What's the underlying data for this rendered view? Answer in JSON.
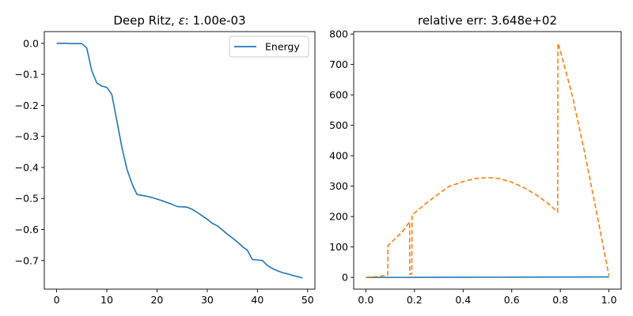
{
  "chart_data": [
    {
      "type": "line",
      "title_text": "Deep Ritz, ",
      "title_symbol": "ε",
      "title_suffix": ": 1.00e-03",
      "xlabel": "",
      "ylabel": "",
      "xlim": [
        -2.45,
        51.45
      ],
      "ylim": [
        -0.7922,
        0.0377
      ],
      "xticks": [
        0,
        10,
        20,
        30,
        40,
        50
      ],
      "yticks": [
        0.0,
        -0.1,
        -0.2,
        -0.3,
        -0.4,
        -0.5,
        -0.6,
        -0.7
      ],
      "ytick_labels": [
        "0.0",
        "−0.1",
        "−0.2",
        "−0.3",
        "−0.4",
        "−0.5",
        "−0.6",
        "−0.7"
      ],
      "grid": false,
      "legend_position": "top-right",
      "series": [
        {
          "name": "Energy",
          "color": "#1f77b4",
          "style": "solid",
          "x": [
            0,
            1,
            2,
            3,
            4,
            5,
            6,
            7,
            8,
            9,
            10,
            11,
            12,
            13,
            14,
            15,
            16,
            17,
            18,
            19,
            20,
            21,
            22,
            23,
            24,
            25,
            26,
            27,
            28,
            29,
            30,
            31,
            32,
            33,
            34,
            35,
            36,
            37,
            38,
            39,
            40,
            41,
            42,
            43,
            44,
            45,
            46,
            47,
            48,
            49
          ],
          "y": [
            0.0,
            0.0,
            0.0,
            -0.001,
            -0.001,
            -0.001,
            -0.015,
            -0.088,
            -0.128,
            -0.138,
            -0.142,
            -0.165,
            -0.25,
            -0.335,
            -0.405,
            -0.452,
            -0.487,
            -0.49,
            -0.493,
            -0.497,
            -0.502,
            -0.507,
            -0.513,
            -0.519,
            -0.526,
            -0.527,
            -0.528,
            -0.535,
            -0.545,
            -0.556,
            -0.567,
            -0.58,
            -0.588,
            -0.601,
            -0.615,
            -0.627,
            -0.64,
            -0.655,
            -0.667,
            -0.697,
            -0.698,
            -0.7,
            -0.716,
            -0.726,
            -0.733,
            -0.739,
            -0.743,
            -0.748,
            -0.752,
            -0.756
          ]
        }
      ]
    },
    {
      "type": "line",
      "title_text": "relative err: 3.648e+02",
      "xlabel": "",
      "ylabel": "",
      "xlim": [
        -0.05,
        1.05
      ],
      "ylim": [
        -38.5,
        808.0
      ],
      "xticks": [
        0.0,
        0.2,
        0.4,
        0.6,
        0.8,
        1.0
      ],
      "xtick_labels": [
        "0.0",
        "0.2",
        "0.4",
        "0.6",
        "0.8",
        "1.0"
      ],
      "yticks": [
        0,
        100,
        200,
        300,
        400,
        500,
        600,
        700,
        800
      ],
      "grid": false,
      "series": [
        {
          "color": "#1f77b4",
          "style": "solid",
          "x": [
            0.0,
            0.2,
            0.4,
            0.6,
            0.8,
            1.0
          ],
          "y": [
            0.0,
            0.2,
            0.5,
            0.8,
            1.2,
            1.5
          ]
        },
        {
          "color": "#ff7f0e",
          "style": "dashed",
          "x": [
            0.0,
            0.05,
            0.09,
            0.091,
            0.15,
            0.18,
            0.181,
            0.189,
            0.19,
            0.25,
            0.3,
            0.34,
            0.4,
            0.45,
            0.5,
            0.55,
            0.6,
            0.65,
            0.7,
            0.75,
            0.78,
            0.789,
            0.79,
            0.8,
            0.85,
            0.9,
            0.95,
            1.0
          ],
          "y": [
            0.0,
            3.0,
            8.0,
            105.0,
            150.0,
            183.0,
            10.0,
            12.0,
            205.0,
            245.0,
            275.0,
            298.0,
            315.0,
            325.0,
            328.0,
            325.0,
            313.0,
            295.0,
            272.0,
            243.0,
            222.0,
            215.0,
            770.0,
            745.0,
            595.0,
            410.0,
            210.0,
            5.0
          ]
        }
      ]
    }
  ]
}
